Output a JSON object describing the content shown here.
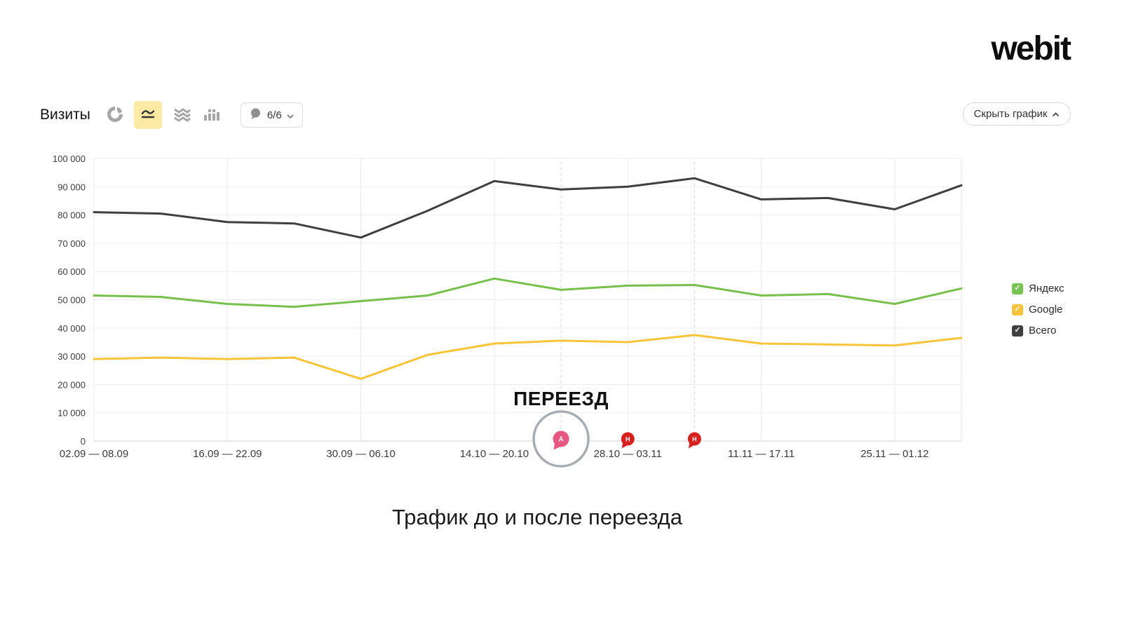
{
  "logo": "webit",
  "toolbar": {
    "metric_label": "Визиты",
    "annotations_button": "6/6",
    "hide_chart_button": "Скрыть график"
  },
  "legend": {
    "items": [
      {
        "label": "Яндекс",
        "color": "#77c353"
      },
      {
        "label": "Google",
        "color": "#f6c33a"
      },
      {
        "label": "Всего",
        "color": "#3f3f3f"
      }
    ]
  },
  "title": "Трафик до и после переезда",
  "chart_data": {
    "type": "line",
    "n_points": 14,
    "x_labels": [
      "02.09 — 08.09",
      "16.09 — 22.09",
      "30.09 — 06.10",
      "14.10 — 20.10",
      "28.10 — 03.11",
      "11.11 — 17.11",
      "25.11 — 01.12"
    ],
    "x_label_indices": [
      0,
      2,
      4,
      6,
      8,
      10,
      12
    ],
    "ylim": [
      0,
      100000
    ],
    "y_tick_labels": [
      "0",
      "10 000",
      "20 000",
      "30 000",
      "40 000",
      "50 000",
      "60 000",
      "70 000",
      "80 000",
      "90 000",
      "100 000"
    ],
    "grid": true,
    "legend_position": "right",
    "series": [
      {
        "name": "Яндекс",
        "color": "#77c04d",
        "values": [
          51500,
          51000,
          48500,
          47500,
          49500,
          51500,
          57500,
          53500,
          55000,
          55200,
          51500,
          52000,
          48500,
          54000
        ]
      },
      {
        "name": "Google",
        "color": "#f8c43a",
        "values": [
          29000,
          29500,
          29000,
          29500,
          22000,
          30500,
          34500,
          35500,
          35000,
          37500,
          34500,
          34200,
          33800,
          36500
        ]
      },
      {
        "name": "Всего",
        "color": "#3f3f3f",
        "values": [
          81000,
          80500,
          77500,
          77000,
          72000,
          81500,
          92000,
          89000,
          90000,
          93000,
          85500,
          86000,
          82000,
          90500
        ]
      }
    ],
    "annotation": {
      "text": "ПЕРЕЕЗД",
      "a_marker_index": 7,
      "a_marker_letter": "А",
      "a_color": "#e75782",
      "h_marker_indices": [
        8,
        9
      ],
      "h_marker_letter": "Н",
      "h_color": "#d8211f",
      "dashed_indices": [
        7,
        9
      ]
    }
  }
}
